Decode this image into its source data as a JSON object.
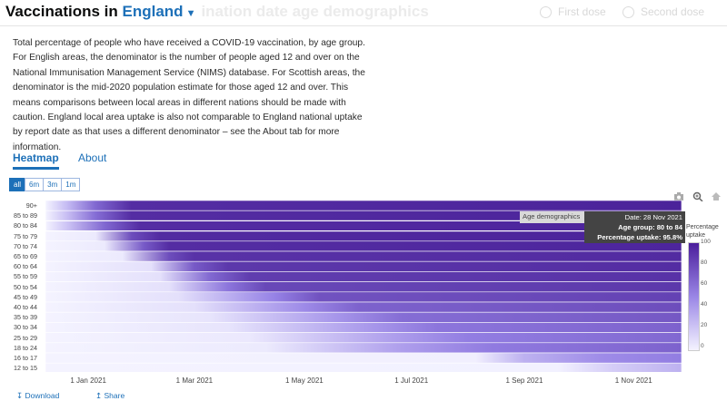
{
  "header": {
    "title_prefix": "Vaccinations in",
    "area": "England",
    "title_rest": "ination date age demographics",
    "radios": [
      {
        "label": "First dose"
      },
      {
        "label": "Second dose"
      }
    ]
  },
  "description": "Total percentage of people who have received a COVID-19 vaccination, by age group. For English areas, the denominator is the number of people aged 12 and over on the National Immunisation Management Service (NIMS) database. For Scottish areas, the denominator is the mid-2020 population estimate for those aged 12 and over. This means comparisons between local areas in different nations should be made with caution. England local area uptake is also not comparable to England national uptake by report date as that uses a different denominator – see the About tab for more information.",
  "tabs": [
    {
      "label": "Heatmap",
      "active": true
    },
    {
      "label": "About",
      "active": false
    }
  ],
  "range_buttons": [
    {
      "label": "all",
      "active": true
    },
    {
      "label": "6m"
    },
    {
      "label": "3m"
    },
    {
      "label": "1m"
    }
  ],
  "toolbar_icons": [
    "camera-icon",
    "zoom-icon",
    "home-icon"
  ],
  "chart_data": {
    "type": "heatmap",
    "age_groups": [
      "90+",
      "85 to 89",
      "80 to 84",
      "75 to 79",
      "70 to 74",
      "65 to 69",
      "60 to 64",
      "55 to 59",
      "50 to 54",
      "45 to 49",
      "40 to 44",
      "35 to 39",
      "30 to 34",
      "25 to 29",
      "18 to 24",
      "16 to 17",
      "12 to 15"
    ],
    "x_ticks": [
      "1 Jan 2021",
      "1 Mar 2021",
      "1 May 2021",
      "1 Jul 2021",
      "1 Sep 2021",
      "1 Nov 2021"
    ],
    "x_range": [
      "2020-12-08",
      "2021-11-28"
    ],
    "colorbar": {
      "title": "Percentage uptake",
      "ticks": [
        "100",
        "80",
        "60",
        "40",
        "20",
        "0"
      ],
      "range": [
        0,
        100
      ]
    },
    "series": [
      {
        "age": "90+",
        "points": [
          [
            "2020-12-08",
            0
          ],
          [
            "2020-12-20",
            30
          ],
          [
            "2021-01-05",
            70
          ],
          [
            "2021-01-25",
            92
          ],
          [
            "2021-11-28",
            96
          ]
        ]
      },
      {
        "age": "85 to 89",
        "points": [
          [
            "2020-12-08",
            0
          ],
          [
            "2020-12-20",
            28
          ],
          [
            "2021-01-05",
            68
          ],
          [
            "2021-01-25",
            92
          ],
          [
            "2021-11-28",
            96
          ]
        ]
      },
      {
        "age": "80 to 84",
        "points": [
          [
            "2020-12-08",
            0
          ],
          [
            "2020-12-20",
            25
          ],
          [
            "2021-01-10",
            70
          ],
          [
            "2021-01-30",
            92
          ],
          [
            "2021-11-28",
            95.8
          ]
        ]
      },
      {
        "age": "75 to 79",
        "points": [
          [
            "2020-12-08",
            0
          ],
          [
            "2021-01-05",
            5
          ],
          [
            "2021-01-25",
            80
          ],
          [
            "2021-02-10",
            93
          ],
          [
            "2021-11-28",
            96
          ]
        ]
      },
      {
        "age": "70 to 74",
        "points": [
          [
            "2020-12-08",
            0
          ],
          [
            "2021-01-10",
            5
          ],
          [
            "2021-02-01",
            75
          ],
          [
            "2021-02-15",
            92
          ],
          [
            "2021-11-28",
            95
          ]
        ]
      },
      {
        "age": "65 to 69",
        "points": [
          [
            "2020-12-08",
            0
          ],
          [
            "2021-01-20",
            5
          ],
          [
            "2021-02-15",
            80
          ],
          [
            "2021-03-01",
            90
          ],
          [
            "2021-11-28",
            93
          ]
        ]
      },
      {
        "age": "60 to 64",
        "points": [
          [
            "2020-12-08",
            0
          ],
          [
            "2021-02-05",
            10
          ],
          [
            "2021-03-01",
            75
          ],
          [
            "2021-03-20",
            88
          ],
          [
            "2021-11-28",
            92
          ]
        ]
      },
      {
        "age": "55 to 59",
        "points": [
          [
            "2020-12-08",
            0
          ],
          [
            "2021-02-10",
            10
          ],
          [
            "2021-03-10",
            70
          ],
          [
            "2021-04-01",
            86
          ],
          [
            "2021-11-28",
            90
          ]
        ]
      },
      {
        "age": "50 to 54",
        "points": [
          [
            "2020-12-08",
            0
          ],
          [
            "2021-02-15",
            10
          ],
          [
            "2021-03-20",
            65
          ],
          [
            "2021-04-10",
            82
          ],
          [
            "2021-11-28",
            88
          ]
        ]
      },
      {
        "age": "45 to 49",
        "points": [
          [
            "2020-12-08",
            0
          ],
          [
            "2021-02-20",
            10
          ],
          [
            "2021-04-15",
            60
          ],
          [
            "2021-05-10",
            78
          ],
          [
            "2021-11-28",
            84
          ]
        ]
      },
      {
        "age": "40 to 44",
        "points": [
          [
            "2020-12-08",
            0
          ],
          [
            "2021-03-01",
            10
          ],
          [
            "2021-05-01",
            55
          ],
          [
            "2021-06-01",
            72
          ],
          [
            "2021-11-28",
            80
          ]
        ]
      },
      {
        "age": "35 to 39",
        "points": [
          [
            "2020-12-08",
            0
          ],
          [
            "2021-03-10",
            8
          ],
          [
            "2021-05-20",
            50
          ],
          [
            "2021-06-25",
            68
          ],
          [
            "2021-11-28",
            76
          ]
        ]
      },
      {
        "age": "30 to 34",
        "points": [
          [
            "2020-12-08",
            0
          ],
          [
            "2021-03-20",
            8
          ],
          [
            "2021-06-10",
            50
          ],
          [
            "2021-07-15",
            65
          ],
          [
            "2021-11-28",
            72
          ]
        ]
      },
      {
        "age": "25 to 29",
        "points": [
          [
            "2020-12-08",
            0
          ],
          [
            "2021-04-01",
            6
          ],
          [
            "2021-06-20",
            45
          ],
          [
            "2021-08-01",
            62
          ],
          [
            "2021-11-28",
            70
          ]
        ]
      },
      {
        "age": "18 to 24",
        "points": [
          [
            "2020-12-08",
            0
          ],
          [
            "2021-04-10",
            5
          ],
          [
            "2021-06-25",
            45
          ],
          [
            "2021-08-15",
            63
          ],
          [
            "2021-11-28",
            72
          ]
        ]
      },
      {
        "age": "16 to 17",
        "points": [
          [
            "2020-12-08",
            0
          ],
          [
            "2021-08-05",
            2
          ],
          [
            "2021-09-01",
            35
          ],
          [
            "2021-10-15",
            55
          ],
          [
            "2021-11-28",
            62
          ]
        ]
      },
      {
        "age": "12 to 15",
        "points": [
          [
            "2020-12-08",
            0
          ],
          [
            "2021-09-20",
            1
          ],
          [
            "2021-10-20",
            20
          ],
          [
            "2021-11-28",
            35
          ]
        ]
      }
    ]
  },
  "tooltip": {
    "section_label": "Age demographics",
    "date": "Date: 28 Nov 2021",
    "age_group": "Age group: 80 to 84",
    "uptake": "Percentage uptake: 95.8%"
  },
  "footer": {
    "download": "Download",
    "share": "Share"
  }
}
